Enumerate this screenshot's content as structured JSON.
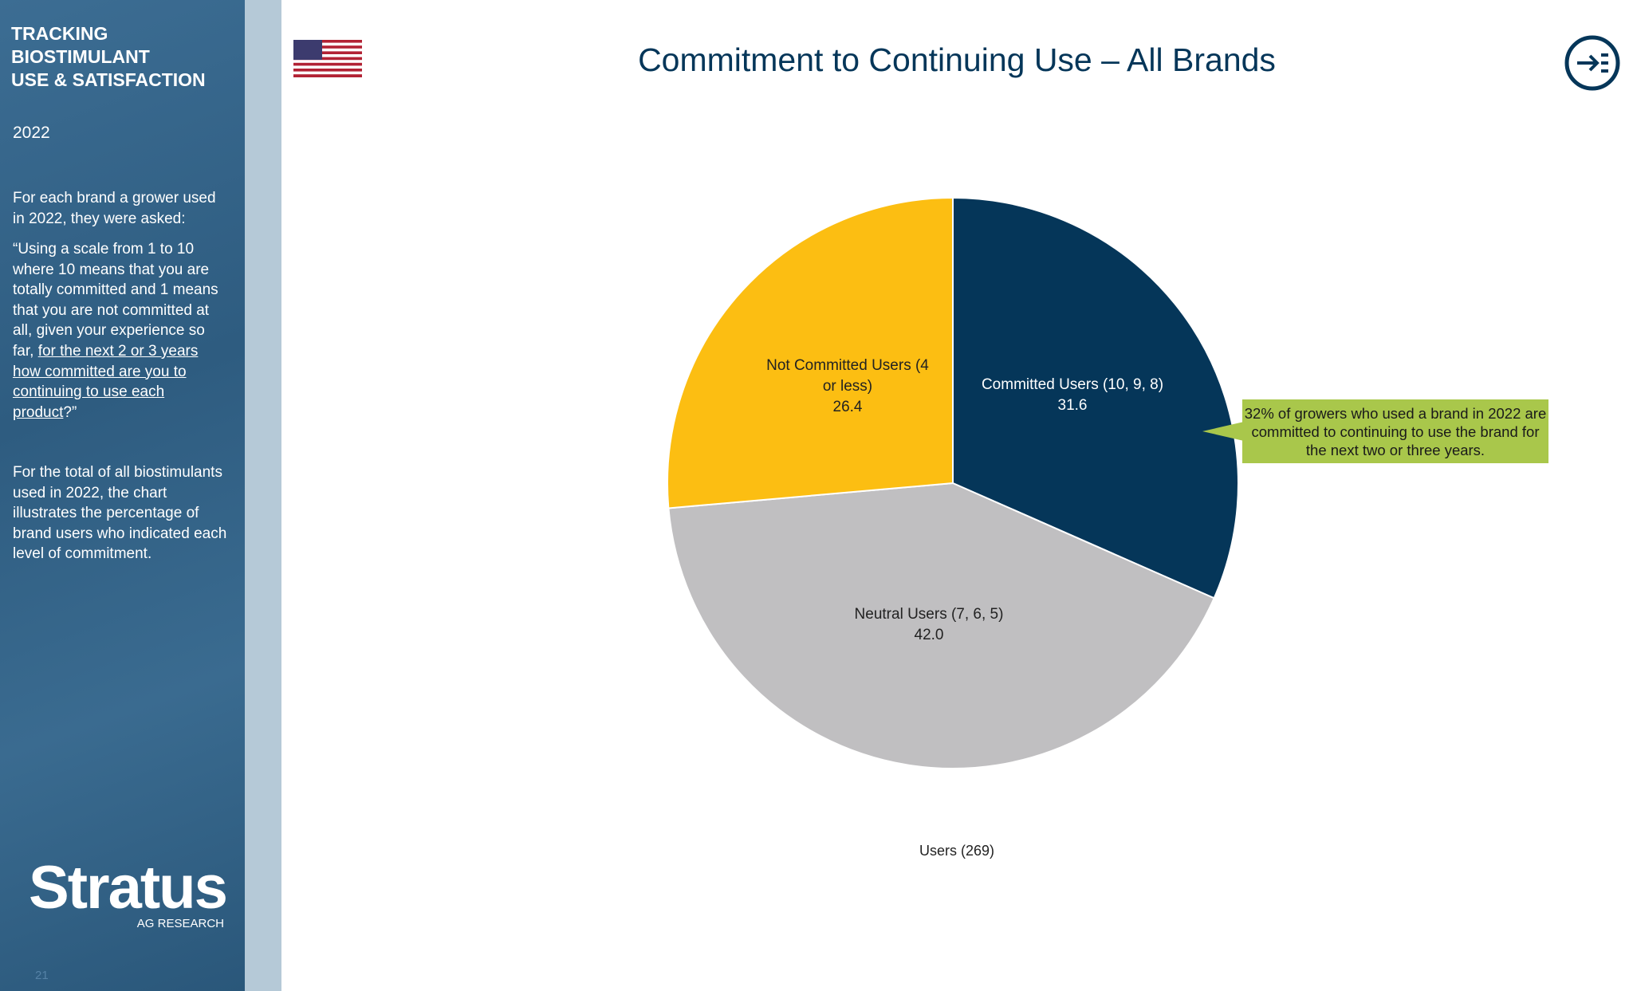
{
  "sidebar": {
    "title_lines": [
      "TRACKING",
      "BIOSTIMULANT",
      "USE & SATISFACTION"
    ],
    "year": "2022",
    "intro": "For each brand a grower used in 2022, they were asked:",
    "question_parts": [
      "“Using a scale from 1 to 10 where 10 means that you are totally committed and 1 means that you are not committed at all, given your experience so far, ",
      "for the next 2 or 3 years how committed are you to continuing to use each product",
      "?”"
    ],
    "note": "For the total of all biostimulants used in 2022, the chart illustrates the percentage of brand users who indicated each level of commitment.",
    "logo": "Stratus",
    "logo_sub": "AG RESEARCH",
    "page_number": "21"
  },
  "chart_data": {
    "type": "pie",
    "title": "Commitment to Continuing Use – All Brands",
    "categories": [
      "Committed Users (10, 9, 8)",
      "Neutral Users (7, 6, 5)",
      "Not Committed Users (4 or less)"
    ],
    "values": [
      31.6,
      42.0,
      26.4
    ],
    "value_labels": [
      "31.6",
      "42.0",
      "26.4"
    ],
    "colors": [
      "#053659",
      "#c0bfc1",
      "#fcbe12"
    ],
    "x_label": "Users (269)",
    "annotation": "32% of growers who used a brand in 2022 are committed to continuing to use the brand for the next two or three years."
  }
}
